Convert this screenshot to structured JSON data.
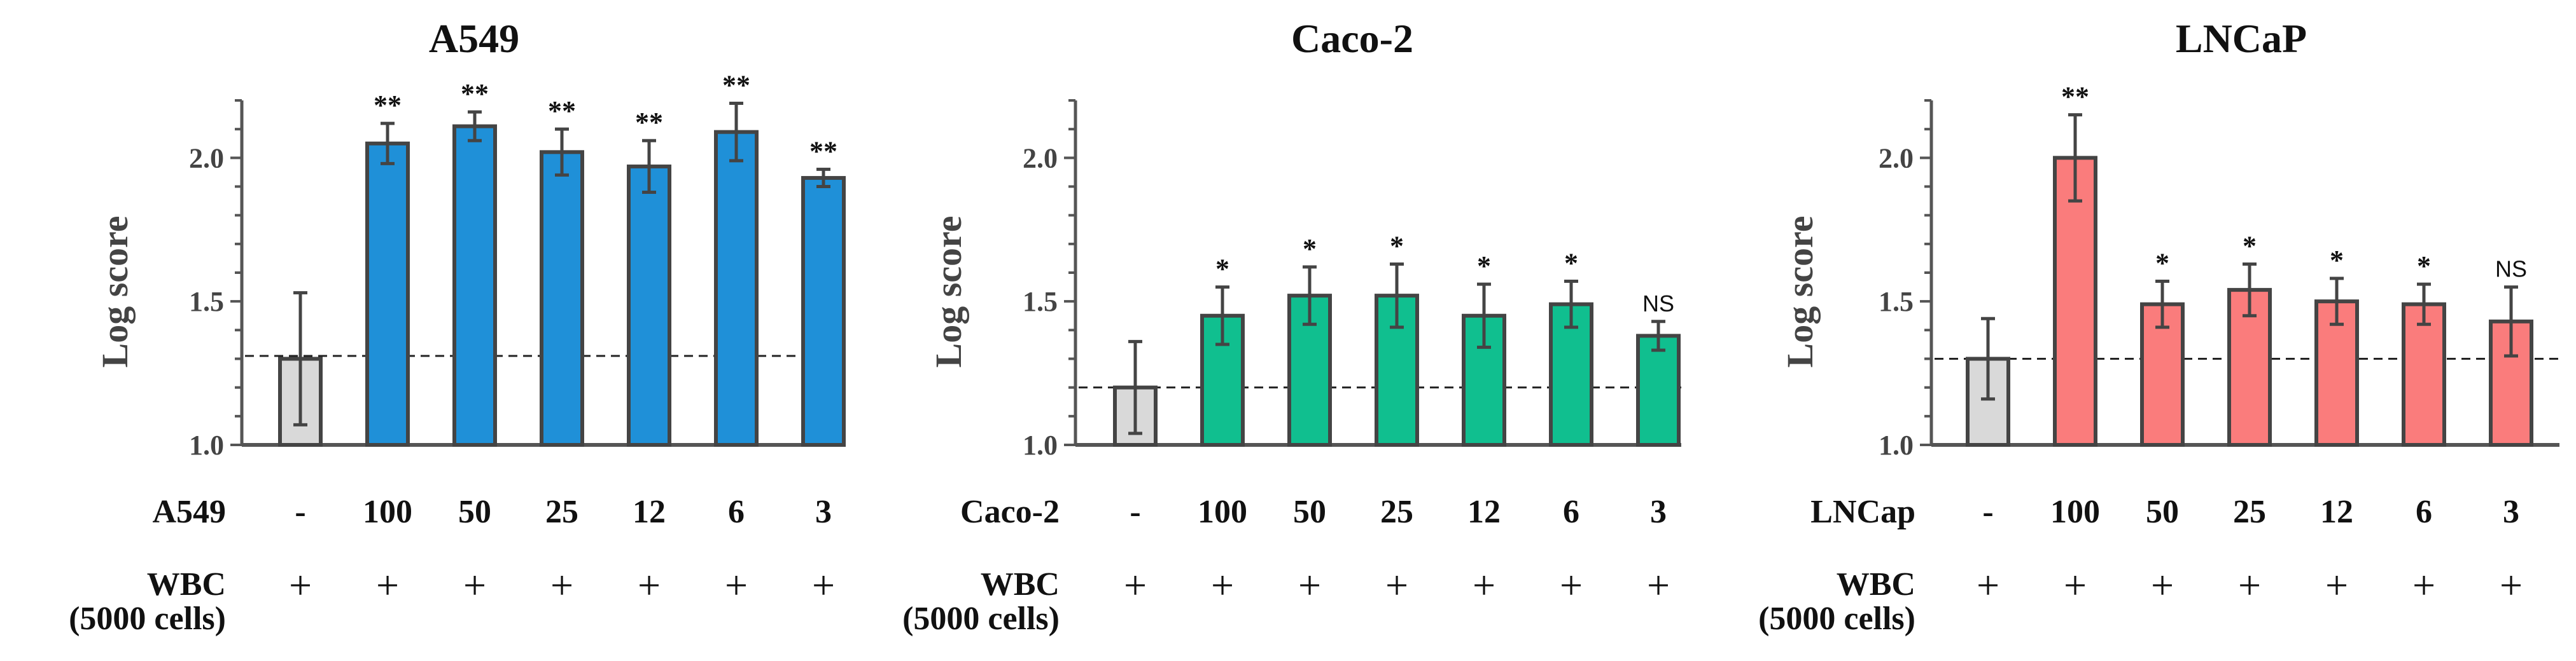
{
  "figure": {
    "row_labels": {
      "wbc_line1": "WBC",
      "wbc_line2": "(5000 cells)"
    }
  },
  "chart_data": [
    {
      "type": "bar",
      "title": "A549",
      "ylabel": "Log score",
      "ylim": [
        1.0,
        2.2
      ],
      "yticks": [
        "1.0",
        "1.5",
        "2.0"
      ],
      "baseline": 1.31,
      "row_label": "A549",
      "categories": [
        "-",
        "100",
        "50",
        "25",
        "12",
        "6",
        "3"
      ],
      "wbc": [
        "+",
        "+",
        "+",
        "+",
        "+",
        "+",
        "+"
      ],
      "values": [
        1.3,
        2.05,
        2.11,
        2.02,
        1.97,
        2.09,
        1.93
      ],
      "errors": [
        0.23,
        0.07,
        0.05,
        0.08,
        0.09,
        0.1,
        0.03
      ],
      "significance": [
        "",
        "**",
        "**",
        "**",
        "**",
        "**",
        "**"
      ],
      "colors": [
        "#D9D9D9",
        "#1F90D8",
        "#1F90D8",
        "#1F90D8",
        "#1F90D8",
        "#1F90D8",
        "#1F90D8"
      ]
    },
    {
      "type": "bar",
      "title": "Caco-2",
      "ylabel": "Log score",
      "ylim": [
        1.0,
        2.2
      ],
      "yticks": [
        "1.0",
        "1.5",
        "2.0"
      ],
      "baseline": 1.2,
      "row_label": "Caco-2",
      "categories": [
        "-",
        "100",
        "50",
        "25",
        "12",
        "6",
        "3"
      ],
      "wbc": [
        "+",
        "+",
        "+",
        "+",
        "+",
        "+",
        "+"
      ],
      "values": [
        1.2,
        1.45,
        1.52,
        1.52,
        1.45,
        1.49,
        1.38
      ],
      "errors": [
        0.16,
        0.1,
        0.1,
        0.11,
        0.11,
        0.08,
        0.05
      ],
      "significance": [
        "",
        "*",
        "*",
        "*",
        "*",
        "*",
        "NS"
      ],
      "colors": [
        "#D9D9D9",
        "#10BF8F",
        "#10BF8F",
        "#10BF8F",
        "#10BF8F",
        "#10BF8F",
        "#10BF8F"
      ]
    },
    {
      "type": "bar",
      "title": "LNCaP",
      "ylabel": "Log score",
      "ylim": [
        1.0,
        2.2
      ],
      "yticks": [
        "1.0",
        "1.5",
        "2.0"
      ],
      "baseline": 1.3,
      "row_label": "LNCap",
      "categories": [
        "-",
        "100",
        "50",
        "25",
        "12",
        "6",
        "3"
      ],
      "wbc": [
        "+",
        "+",
        "+",
        "+",
        "+",
        "+",
        "+"
      ],
      "values": [
        1.3,
        2.0,
        1.49,
        1.54,
        1.5,
        1.49,
        1.43
      ],
      "errors": [
        0.14,
        0.15,
        0.08,
        0.09,
        0.08,
        0.07,
        0.12
      ],
      "significance": [
        "",
        "**",
        "*",
        "*",
        "*",
        "*",
        "NS"
      ],
      "colors": [
        "#D9D9D9",
        "#FA7C7C",
        "#FA7C7C",
        "#FA7C7C",
        "#FA7C7C",
        "#FA7C7C",
        "#FA7C7C"
      ]
    }
  ]
}
